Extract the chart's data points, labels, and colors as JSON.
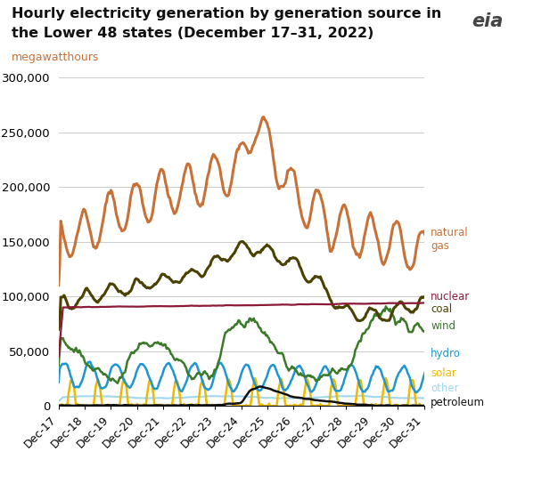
{
  "title_line1": "Hourly electricity generation by generation source in",
  "title_line2": "the Lower 48 states (December 17–31, 2022)",
  "ylabel": "megawatthours",
  "ylim": [
    0,
    310000
  ],
  "yticks": [
    0,
    50000,
    100000,
    150000,
    200000,
    250000,
    300000
  ],
  "ytick_labels": [
    "0",
    "50,000",
    "100,000",
    "150,000",
    "200,000",
    "250,000",
    "300,000"
  ],
  "xtick_labels": [
    "Dec-17",
    "Dec-18",
    "Dec-19",
    "Dec-20",
    "Dec-21",
    "Dec-22",
    "Dec-23",
    "Dec-24",
    "Dec-25",
    "Dec-26",
    "Dec-27",
    "Dec-28",
    "Dec-29",
    "Dec-30",
    "Dec-31"
  ],
  "colors": {
    "natural_gas": "#C87137",
    "nuclear": "#8B1A38",
    "coal": "#4A4200",
    "wind": "#3A7A28",
    "hydro": "#1E96D2",
    "solar": "#F0B800",
    "other": "#A0D8EF",
    "petroleum": "#111111"
  },
  "line_widths": {
    "natural_gas": 2.2,
    "nuclear": 1.6,
    "coal": 2.2,
    "wind": 1.8,
    "hydro": 1.8,
    "solar": 1.8,
    "other": 1.5,
    "petroleum": 1.8
  },
  "background_color": "#ffffff",
  "grid_color": "#cccccc",
  "label_fontsize": 8.5,
  "title_fontsize": 11.5,
  "axis_fontsize": 9.5
}
